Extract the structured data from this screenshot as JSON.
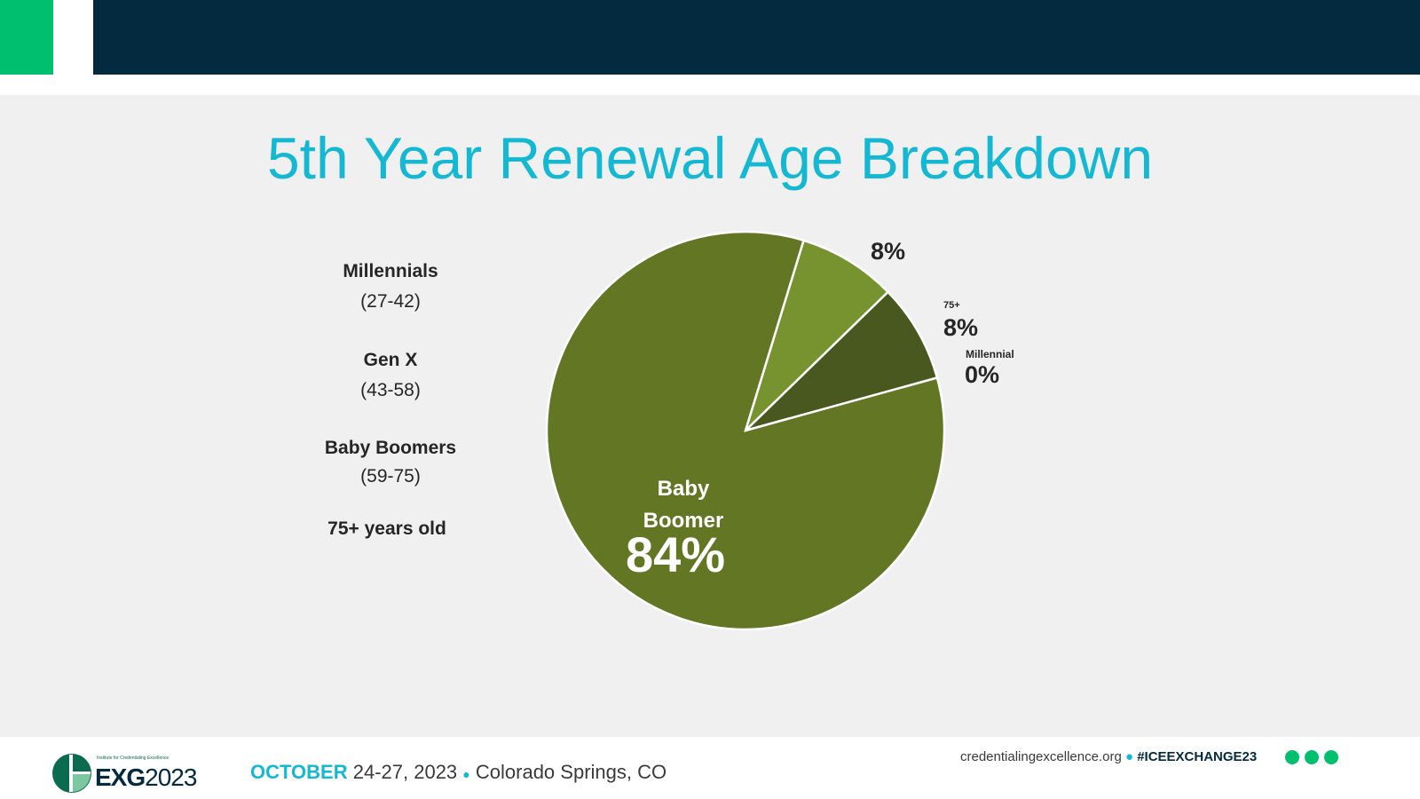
{
  "title": "5th Year Renewal Age Breakdown",
  "legend": [
    {
      "name": "Millennials",
      "range": "(27-42)"
    },
    {
      "name": "Gen X",
      "range": "(43-58)"
    },
    {
      "name": "Baby Boomers",
      "range": "(59-75)"
    },
    {
      "name": "75+ years old",
      "range": ""
    }
  ],
  "chart_data": {
    "type": "pie",
    "title": "5th Year Renewal Age Breakdown",
    "start_angle_deg": 17,
    "slices": [
      {
        "label": "",
        "value": 8,
        "display": "8%",
        "color": "#76932f"
      },
      {
        "label": "75+",
        "value": 8,
        "display": "8%",
        "color": "#48581e"
      },
      {
        "label": "Millennial",
        "value": 0,
        "display": "0%",
        "color": "#5f7724"
      },
      {
        "label": "Baby Boomer",
        "value": 84,
        "display": "84%",
        "color": "#627624"
      }
    ]
  },
  "footer": {
    "logo_small": "Institute for Credentialing Excellence",
    "logo_exg": "EXG",
    "logo_year": "2023",
    "month": "OCTOBER",
    "dates": "24-27, 2023",
    "location": "Colorado Springs, CO",
    "website": "credentialingexcellence.org",
    "hashtag": "#ICEEXCHANGE23"
  }
}
